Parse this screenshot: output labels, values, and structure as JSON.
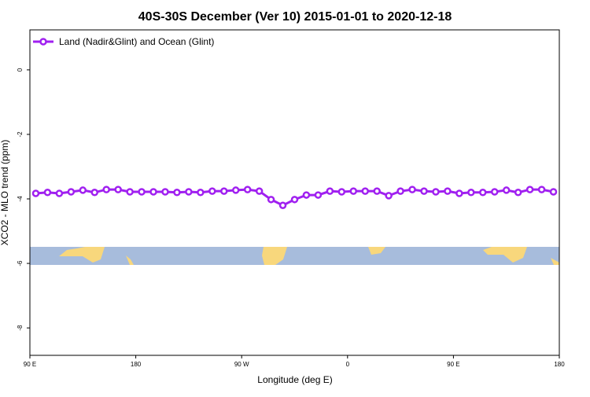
{
  "chart_data": {
    "type": "line",
    "title": "40S-30S December (Ver 10)   2015-01-01 to 2020-12-18",
    "x_label": "Longitude (deg E)",
    "y_label": "XCO2 - MLO trend (ppm)",
    "x": [
      95,
      105,
      115,
      125,
      135,
      145,
      155,
      165,
      175,
      185,
      195,
      205,
      215,
      225,
      235,
      245,
      255,
      265,
      275,
      285,
      295,
      305,
      315,
      325,
      335,
      345,
      355,
      365,
      375,
      385,
      395,
      405,
      415,
      425,
      435,
      445,
      455,
      465,
      475,
      485,
      495,
      505,
      515,
      525,
      535
    ],
    "series": [
      {
        "name": "Land (Nadir&Glint) and Ocean (Glint)",
        "color": "#a020f0",
        "values": [
          -3.83,
          -3.8,
          -3.83,
          -3.78,
          -3.73,
          -3.8,
          -3.71,
          -3.71,
          -3.78,
          -3.78,
          -3.78,
          -3.78,
          -3.8,
          -3.78,
          -3.8,
          -3.76,
          -3.76,
          -3.73,
          -3.71,
          -3.76,
          -4.02,
          -4.2,
          -4.02,
          -3.88,
          -3.88,
          -3.76,
          -3.78,
          -3.76,
          -3.76,
          -3.76,
          -3.9,
          -3.76,
          -3.71,
          -3.76,
          -3.78,
          -3.76,
          -3.83,
          -3.8,
          -3.8,
          -3.78,
          -3.73,
          -3.8,
          -3.71,
          -3.71,
          -3.78
        ]
      }
    ],
    "xlim": [
      90,
      540
    ],
    "xticks": [
      {
        "value": 90,
        "label": "90 E"
      },
      180,
      {
        "value": 270,
        "label": "90 W"
      },
      {
        "value": 360,
        "label": "0"
      },
      {
        "value": 450,
        "label": "90 E"
      },
      {
        "value": 540,
        "label": "180"
      }
    ],
    "ylim": [
      -8.85,
      1.24
    ],
    "yticks": [
      0,
      -2,
      -4,
      -6,
      -8
    ],
    "legend": "top-left"
  }
}
